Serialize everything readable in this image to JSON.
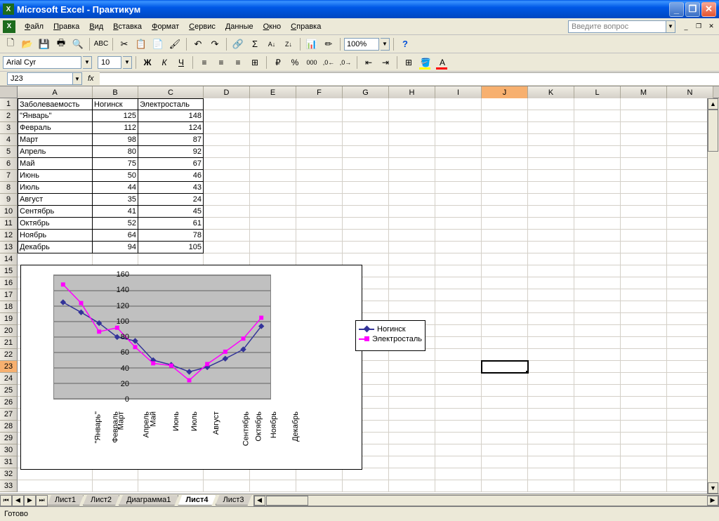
{
  "window": {
    "title": "Microsoft Excel - Практикум"
  },
  "menu": {
    "items": [
      "Файл",
      "Правка",
      "Вид",
      "Вставка",
      "Формат",
      "Сервис",
      "Данные",
      "Окно",
      "Справка"
    ],
    "askbox": "Введите вопрос"
  },
  "toolbar": {
    "zoom": "100%"
  },
  "format": {
    "font": "Arial Cyr",
    "size": "10"
  },
  "namebox": {
    "ref": "J23"
  },
  "columns": {
    "labels": [
      "A",
      "B",
      "C",
      "D",
      "E",
      "F",
      "G",
      "H",
      "I",
      "J",
      "K",
      "L",
      "M",
      "N"
    ],
    "widths": [
      107,
      65,
      93,
      66,
      66,
      66,
      66,
      66,
      66,
      66,
      66,
      66,
      66,
      66
    ],
    "selected_index": 9
  },
  "rows": {
    "count": 33,
    "selected": 23
  },
  "selected_cell": {
    "col": 9,
    "row": 23
  },
  "table": {
    "header": [
      "Заболеваемость",
      "Ногинск",
      "Электросталь"
    ],
    "rows": [
      [
        "\"Январь\"",
        125,
        148
      ],
      [
        "Февраль",
        112,
        124
      ],
      [
        "Март",
        98,
        87
      ],
      [
        "Апрель",
        80,
        92
      ],
      [
        "Май",
        75,
        67
      ],
      [
        "Июнь",
        50,
        46
      ],
      [
        "Июль",
        44,
        43
      ],
      [
        "Август",
        35,
        24
      ],
      [
        "Сентябрь",
        41,
        45
      ],
      [
        "Октябрь",
        52,
        61
      ],
      [
        "Ноябрь",
        64,
        78
      ],
      [
        "Декабрь",
        94,
        105
      ]
    ]
  },
  "chart": {
    "type": "line",
    "categories": [
      "\"Январь\"",
      "Февраль",
      "Март",
      "Апрель",
      "Май",
      "Июнь",
      "Июль",
      "Август",
      "Сентябрь",
      "Октябрь",
      "Ноябрь",
      "Декабрь"
    ],
    "series": [
      {
        "name": "Ногинск",
        "values": [
          125,
          112,
          98,
          80,
          75,
          50,
          44,
          35,
          41,
          52,
          64,
          94
        ],
        "color": "#333399",
        "marker": "diamond"
      },
      {
        "name": "Электросталь",
        "values": [
          148,
          124,
          87,
          92,
          67,
          46,
          43,
          24,
          45,
          61,
          78,
          105
        ],
        "color": "#ff00ff",
        "marker": "square"
      }
    ],
    "ylim": [
      0,
      160
    ],
    "ytick_step": 20,
    "plot_bg": "#c0c0c0",
    "grid_color": "#000000",
    "line_width": 1.5,
    "marker_size": 6,
    "font_size": 11
  },
  "sheets": {
    "tabs": [
      "Лист1",
      "Лист2",
      "Диаграмма1",
      "Лист4",
      "Лист3"
    ],
    "active": 3
  },
  "status": {
    "text": "Готово"
  }
}
